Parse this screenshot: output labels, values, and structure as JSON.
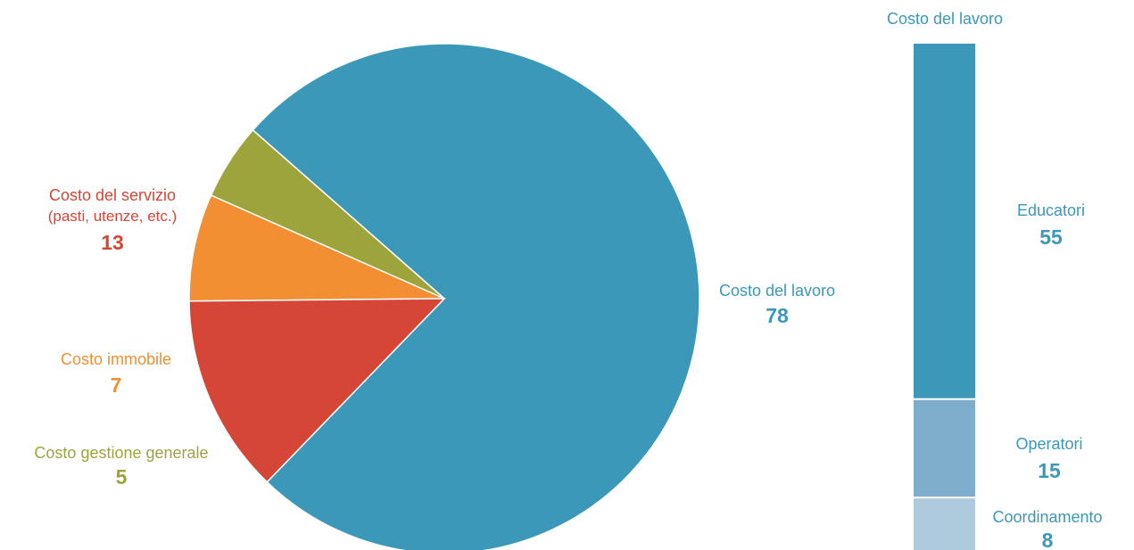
{
  "chart_data": [
    {
      "type": "pie",
      "slices": [
        {
          "key": "lavoro",
          "label": "Costo del lavoro",
          "sublabel": "",
          "value": 78,
          "display": "78",
          "color": "#3c98b8"
        },
        {
          "key": "gestione",
          "label": "Costo gestione generale",
          "sublabel": "",
          "value": 5,
          "display": "5",
          "color": "#9ea43c"
        },
        {
          "key": "immobile",
          "label": "Costo immobile",
          "sublabel": "",
          "value": 7,
          "display": "7",
          "color": "#f28f32"
        },
        {
          "key": "servizio",
          "label": "Costo del servizio",
          "sublabel": "(pasti, utenze, etc.)",
          "value": 13,
          "display": "13",
          "color": "#d64636"
        }
      ]
    },
    {
      "type": "bar",
      "stacked": true,
      "title": "Costo del lavoro",
      "title_color": "#3c98b8",
      "label_color": "#3c98b8",
      "segments": [
        {
          "key": "educatori",
          "label": "Educatori",
          "value": 55,
          "display": "55",
          "color": "#3c98b8"
        },
        {
          "key": "operatori",
          "label": "Operatori",
          "value": 15,
          "display": "15",
          "color": "#7eaecb"
        },
        {
          "key": "coordinamento",
          "label": "Coordinamento",
          "value": 8,
          "display": "8",
          "color": "#aecbde"
        }
      ]
    }
  ]
}
